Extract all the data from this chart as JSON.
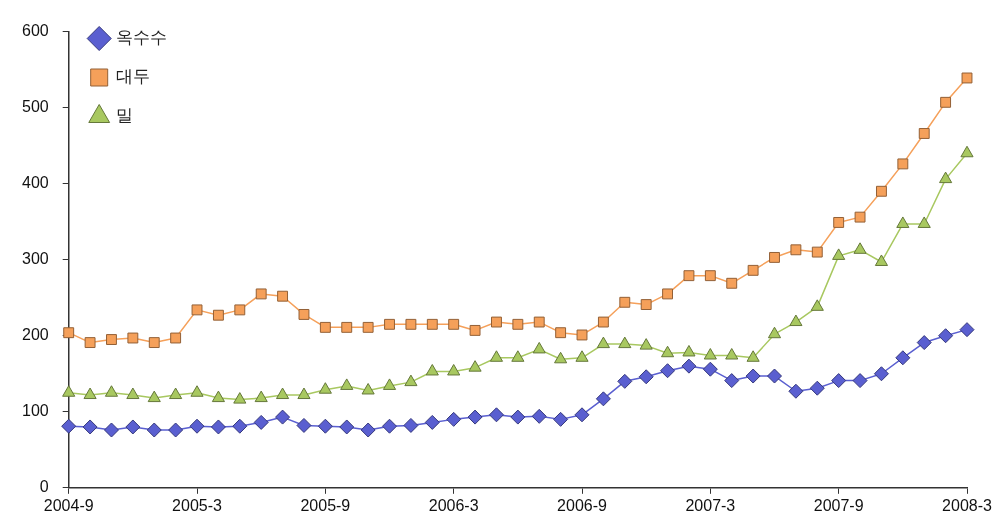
{
  "chart_data": {
    "type": "line",
    "categories": [
      "2004-9",
      null,
      null,
      null,
      null,
      null,
      "2005-3",
      null,
      null,
      null,
      null,
      null,
      "2005-9",
      null,
      null,
      null,
      null,
      null,
      "2006-3",
      null,
      null,
      null,
      null,
      null,
      "2006-9",
      null,
      null,
      null,
      null,
      null,
      "2007-3",
      null,
      null,
      null,
      null,
      null,
      "2007-9",
      null,
      null,
      null,
      null,
      null,
      "2008-3"
    ],
    "series": [
      {
        "name": "옥수수",
        "color": "#5a5fd0",
        "marker": "diamond",
        "values": [
          81,
          80,
          76,
          80,
          76,
          76,
          81,
          80,
          81,
          86,
          93,
          82,
          81,
          80,
          76,
          81,
          82,
          86,
          90,
          93,
          96,
          93,
          94,
          90,
          96,
          117,
          140,
          146,
          154,
          160,
          156,
          141,
          147,
          147,
          127,
          131,
          141,
          141,
          150,
          171,
          191,
          200,
          208
        ]
      },
      {
        "name": "대두",
        "color": "#f5a05a",
        "marker": "square",
        "values": [
          204,
          191,
          195,
          197,
          191,
          197,
          234,
          227,
          234,
          255,
          252,
          228,
          211,
          211,
          211,
          215,
          215,
          215,
          215,
          207,
          218,
          215,
          218,
          204,
          201,
          218,
          244,
          241,
          255,
          279,
          279,
          269,
          286,
          303,
          313,
          310,
          349,
          356,
          390,
          426,
          466,
          507,
          539
        ]
      },
      {
        "name": "밀",
        "color": "#a8c860",
        "marker": "triangle",
        "values": [
          125,
          122,
          125,
          122,
          118,
          122,
          125,
          118,
          116,
          118,
          122,
          122,
          129,
          134,
          128,
          134,
          139,
          153,
          153,
          158,
          171,
          171,
          182,
          169,
          171,
          189,
          189,
          187,
          177,
          178,
          174,
          174,
          171,
          202,
          218,
          238,
          305,
          313,
          297,
          347,
          347,
          406,
          440
        ]
      }
    ],
    "ylim": [
      0,
      600
    ],
    "yticks": [
      0,
      100,
      200,
      300,
      400,
      500,
      600
    ],
    "grid": false,
    "legend": "top left",
    "line_style": "solid"
  }
}
